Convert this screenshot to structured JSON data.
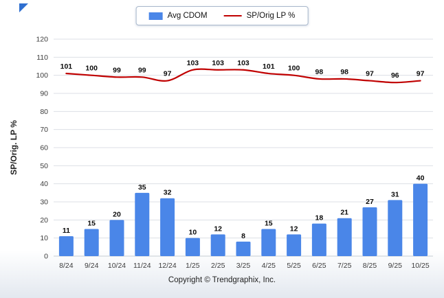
{
  "chart": {
    "footer": "Copyright © Trendgraphix, Inc."
  },
  "chart_data": {
    "type": "bar+line",
    "title": "",
    "ylabel": "SP/Orig. LP %",
    "xlabel": "",
    "ylim": [
      0,
      120
    ],
    "ytick_step": 10,
    "grid": true,
    "legend_position": "top-center",
    "categories": [
      "8/24",
      "9/24",
      "10/24",
      "11/24",
      "12/24",
      "1/25",
      "2/25",
      "3/25",
      "4/25",
      "5/25",
      "6/25",
      "7/25",
      "8/25",
      "9/25",
      "10/25"
    ],
    "series": [
      {
        "name": "Avg CDOM",
        "type": "bar",
        "color": "#4a86e8",
        "values": [
          11,
          15,
          20,
          35,
          32,
          10,
          12,
          8,
          15,
          12,
          18,
          21,
          27,
          31,
          40
        ]
      },
      {
        "name": "SP/Orig LP %",
        "type": "line",
        "color": "#c00000",
        "values": [
          101,
          100,
          99,
          99,
          97,
          103,
          103,
          103,
          101,
          100,
          98,
          98,
          97,
          96,
          97
        ]
      }
    ]
  }
}
